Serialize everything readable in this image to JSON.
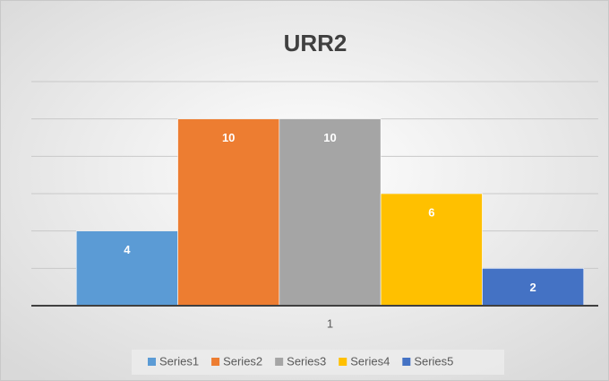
{
  "chart_data": {
    "type": "bar",
    "title": "URR2",
    "categories": [
      "1"
    ],
    "series": [
      {
        "name": "Series1",
        "color": "#5b9bd5",
        "values": [
          4
        ]
      },
      {
        "name": "Series2",
        "color": "#ed7d31",
        "values": [
          10
        ]
      },
      {
        "name": "Series3",
        "color": "#a5a5a5",
        "values": [
          10
        ]
      },
      {
        "name": "Series4",
        "color": "#ffc000",
        "values": [
          6
        ]
      },
      {
        "name": "Series5",
        "color": "#4472c4",
        "values": [
          2
        ]
      }
    ],
    "ylim": [
      0,
      12
    ],
    "yticks": [
      0,
      2,
      4,
      6,
      8,
      10,
      12
    ],
    "grid": true,
    "legend": "bottom"
  }
}
